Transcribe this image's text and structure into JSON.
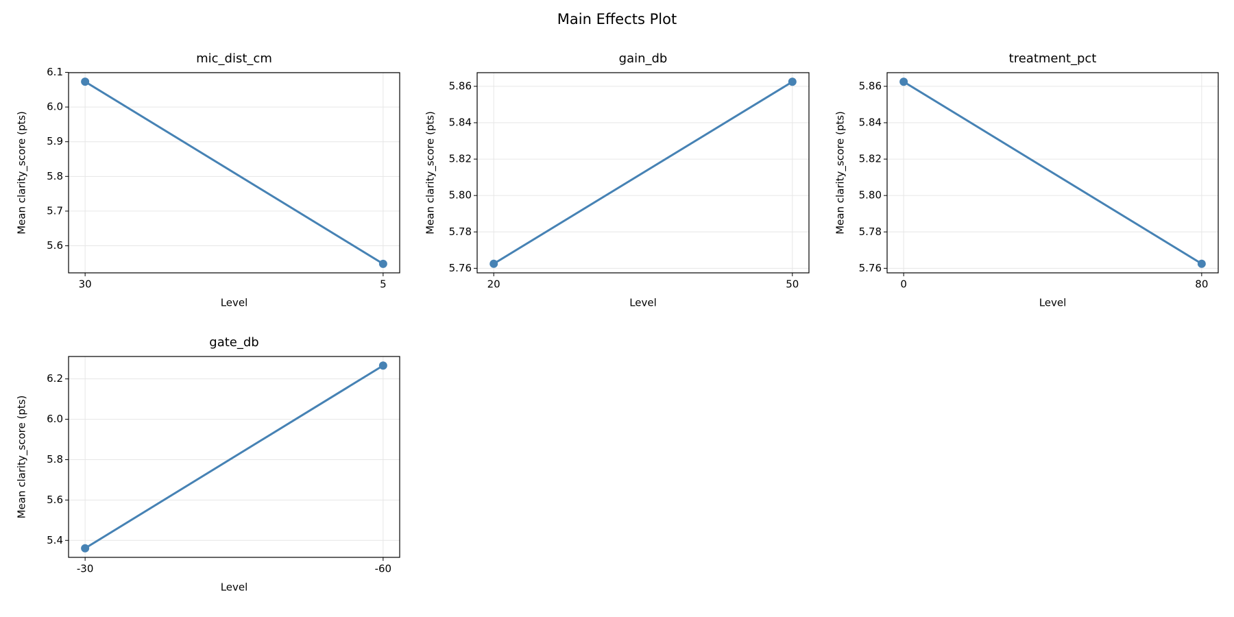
{
  "title": "Main Effects Plot",
  "chart_data": [
    {
      "type": "line",
      "title": "mic_dist_cm",
      "x_label": "Level",
      "y_label": "Mean clarity_score (pts)",
      "categories": [
        "30",
        "5"
      ],
      "values": [
        6.073,
        5.548
      ],
      "color": "#4682b4",
      "ylim": [
        5.522,
        6.099
      ],
      "yticks": [
        5.6,
        5.7,
        5.8,
        5.9,
        {
          "value": 6,
          "label": "6.0"
        },
        6.1
      ],
      "grid": true
    },
    {
      "type": "line",
      "title": "gain_db",
      "x_label": "Level",
      "y_label": "Mean clarity_score (pts)",
      "categories": [
        "20",
        "50"
      ],
      "values": [
        5.7625,
        5.8625
      ],
      "color": "#4682b4",
      "ylim": [
        5.7575,
        5.8675
      ],
      "yticks": [
        5.76,
        5.78,
        {
          "value": 5.8,
          "label": "5.80"
        },
        5.82,
        5.84,
        5.86
      ],
      "grid": true
    },
    {
      "type": "line",
      "title": "treatment_pct",
      "x_label": "Level",
      "y_label": "Mean clarity_score (pts)",
      "categories": [
        "0",
        "80"
      ],
      "values": [
        5.8625,
        5.7625
      ],
      "color": "#4682b4",
      "ylim": [
        5.7575,
        5.8675
      ],
      "yticks": [
        5.76,
        5.78,
        {
          "value": 5.8,
          "label": "5.80"
        },
        5.82,
        5.84,
        5.86
      ],
      "grid": true
    },
    {
      "type": "line",
      "title": "gate_db",
      "x_label": "Level",
      "y_label": "Mean clarity_score (pts)",
      "categories": [
        "-30",
        "-60"
      ],
      "values": [
        5.361,
        6.266
      ],
      "color": "#4682b4",
      "ylim": [
        5.316,
        6.311
      ],
      "yticks": [
        5.4,
        5.6,
        5.8,
        {
          "value": 6,
          "label": "6.0"
        },
        6.2
      ],
      "grid": true
    }
  ]
}
